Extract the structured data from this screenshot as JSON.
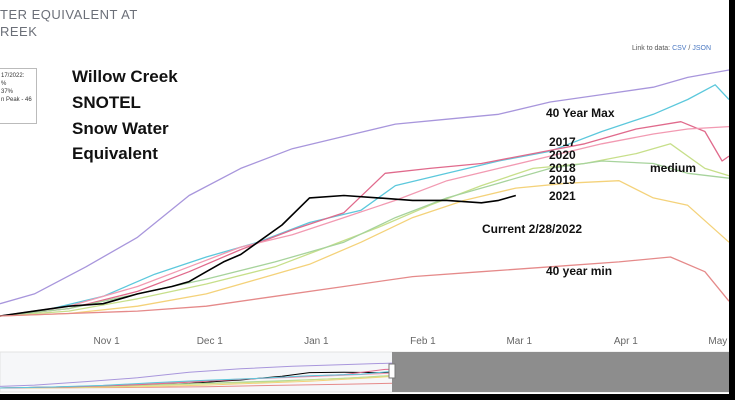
{
  "header": {
    "title_line1": "TER EQUIVALENT AT",
    "title_line2": "REEK",
    "link_label": "Link to data:",
    "link_csv": "CSV",
    "link_sep": "/",
    "link_json": "JSON"
  },
  "legend_box": {
    "line1": "17/2022:",
    "line2": "%",
    "line3": "37%",
    "line4": "n Peak - 46"
  },
  "annotations": {
    "title_l1": "Willow Creek",
    "title_l2": "SNOTEL",
    "title_l3": "Snow Water",
    "title_l4": "Equivalent",
    "max": "40 Year Max",
    "y2017": "2017",
    "y2020": "2020",
    "y2018": "2018",
    "y2019": "2019",
    "y2021": "2021",
    "medium": "medium",
    "current": "Current 2/28/2022",
    "min": "40 year min"
  },
  "chart_data": {
    "type": "line",
    "x_ticks": [
      "Nov 1",
      "Dec 1",
      "Jan 1",
      "Feb 1",
      "Mar 1",
      "Apr 1",
      "May 1"
    ],
    "ylim": [
      0,
      100
    ],
    "grid": false,
    "navigator": true,
    "series": [
      {
        "name": "40 Year Max",
        "color": "#a896dc",
        "x": [
          0,
          10,
          25,
          40,
          55,
          70,
          85,
          100,
          115,
          130,
          145,
          160,
          175,
          190,
          200,
          212
        ],
        "y": [
          5,
          9,
          20,
          32,
          49,
          60,
          68,
          73,
          78,
          80,
          82,
          87,
          90,
          93,
          97,
          100
        ]
      },
      {
        "name": "2017",
        "color": "#5cc8dc",
        "x": [
          0,
          15,
          30,
          45,
          60,
          75,
          90,
          105,
          115,
          130,
          145,
          160,
          175,
          190,
          200,
          208,
          212
        ],
        "y": [
          0,
          3,
          8,
          17,
          24,
          30,
          38,
          43,
          53,
          58,
          63,
          67,
          75,
          82,
          88,
          94,
          88
        ]
      },
      {
        "name": "2020",
        "color": "#e06a8c",
        "x": [
          0,
          20,
          40,
          55,
          70,
          85,
          100,
          112,
          125,
          140,
          155,
          170,
          185,
          198,
          205,
          210,
          212
        ],
        "y": [
          0,
          3,
          10,
          18,
          27,
          35,
          42,
          58,
          60,
          62,
          66,
          70,
          76,
          79,
          75,
          63,
          65
        ]
      },
      {
        "name": "2018",
        "color": "#f29ab2",
        "x": [
          0,
          20,
          40,
          55,
          70,
          85,
          100,
          115,
          130,
          145,
          160,
          175,
          190,
          200,
          212
        ],
        "y": [
          0,
          4,
          12,
          20,
          28,
          33,
          40,
          47,
          55,
          60,
          65,
          70,
          74,
          76,
          77
        ]
      },
      {
        "name": "2019",
        "color": "#c7df8a",
        "x": [
          0,
          20,
          40,
          60,
          80,
          95,
          110,
          125,
          140,
          155,
          170,
          185,
          195,
          205,
          212
        ],
        "y": [
          0,
          2,
          7,
          13,
          20,
          28,
          36,
          45,
          53,
          60,
          62,
          66,
          70,
          60,
          57
        ]
      },
      {
        "name": "medium",
        "color": "#a7d39c",
        "x": [
          0,
          20,
          40,
          60,
          80,
          100,
          115,
          130,
          145,
          160,
          175,
          190,
          200,
          212
        ],
        "y": [
          0,
          3,
          9,
          15,
          22,
          30,
          40,
          48,
          54,
          60,
          63,
          62,
          58,
          56
        ]
      },
      {
        "name": "2021",
        "color": "#f4d27a",
        "x": [
          0,
          20,
          40,
          60,
          75,
          90,
          105,
          120,
          135,
          150,
          165,
          180,
          190,
          200,
          212
        ],
        "y": [
          0,
          1,
          4,
          9,
          15,
          21,
          30,
          40,
          47,
          52,
          54,
          55,
          48,
          45,
          30
        ]
      },
      {
        "name": "Current 2/28/2022",
        "color": "#000000",
        "x": [
          0,
          10,
          20,
          30,
          40,
          50,
          55,
          60,
          65,
          70,
          75,
          82,
          90,
          100,
          110,
          120,
          130,
          140,
          145,
          150
        ],
        "y": [
          0,
          2,
          4,
          5,
          9,
          12,
          14,
          18,
          22,
          25,
          30,
          37,
          48,
          49,
          48,
          47,
          47,
          46,
          47,
          49
        ]
      },
      {
        "name": "40 year min",
        "color": "#e58a8a",
        "x": [
          0,
          20,
          40,
          60,
          80,
          100,
          120,
          140,
          160,
          180,
          195,
          205,
          212
        ],
        "y": [
          0,
          1,
          2,
          4,
          8,
          12,
          16,
          18,
          20,
          22,
          24,
          18,
          6
        ]
      }
    ]
  }
}
